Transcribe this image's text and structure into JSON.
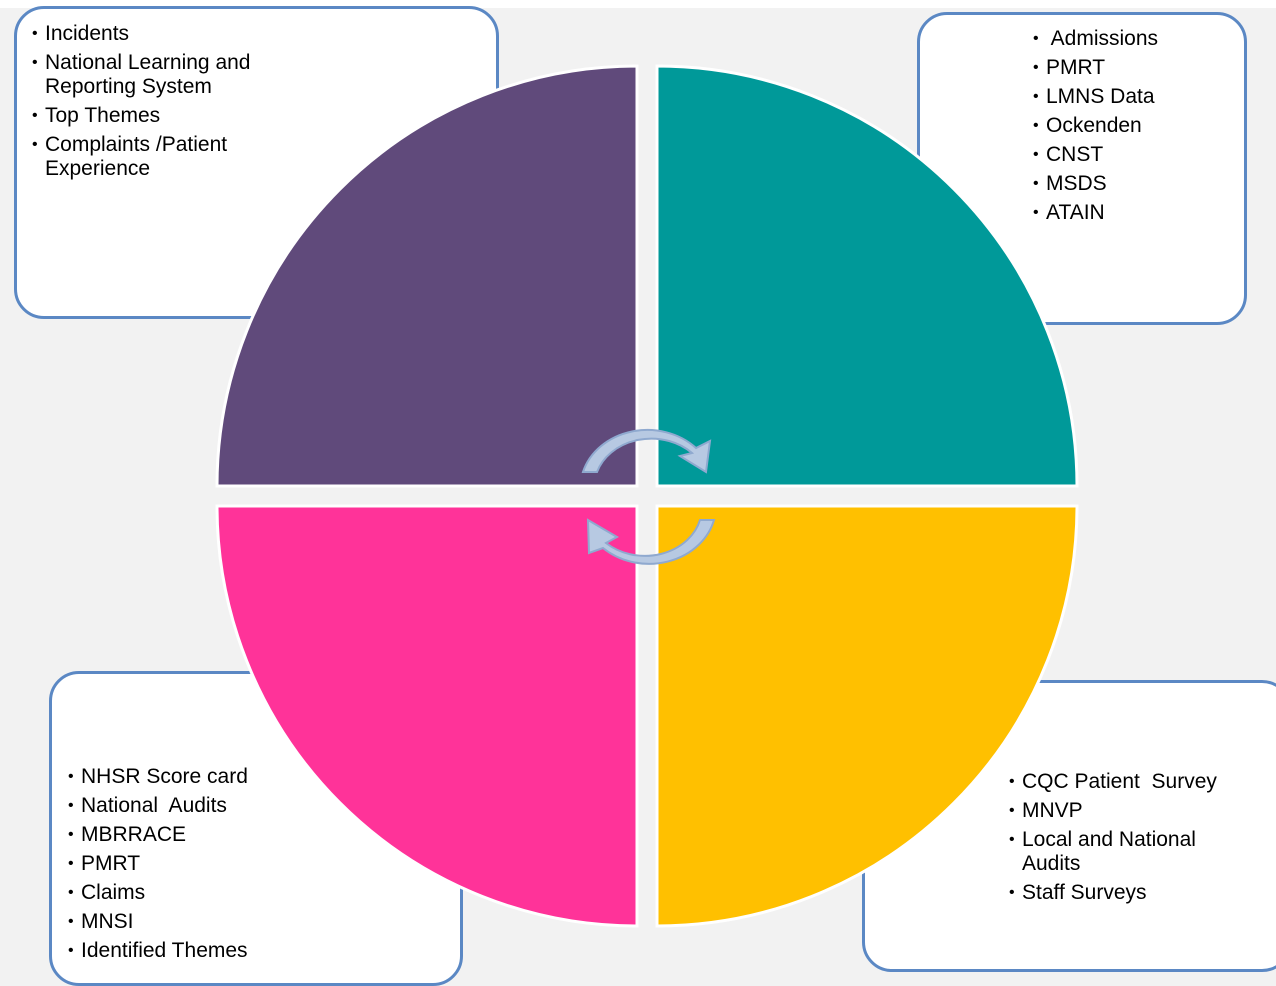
{
  "quadrants": {
    "top_left": {
      "color": "#604a7b",
      "items": [
        "Incidents",
        "National Learning and Reporting System",
        "Top Themes",
        "Complaints /Patient Experience"
      ]
    },
    "top_right": {
      "color": "#009999",
      "items": [
        " Admissions",
        "PMRT",
        "LMNS Data",
        "Ockenden",
        "CNST",
        "MSDS",
        "ATAIN"
      ]
    },
    "bottom_left": {
      "color": "#ff3399",
      "items": [
        "NHSR Score card",
        "National  Audits",
        "MBRRACE",
        "PMRT",
        "Claims",
        "MNSI",
        "Identified Themes"
      ]
    },
    "bottom_right": {
      "color": "#ffc000",
      "items": [
        "CQC Patient  Survey",
        "MNVP",
        "Local and National Audits",
        "Staff Surveys"
      ]
    }
  },
  "box_border_color": "#5b88c4",
  "arrow_color": "#b7c9e2"
}
